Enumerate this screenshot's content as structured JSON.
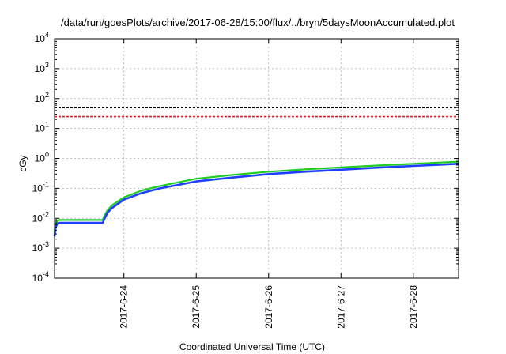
{
  "chart_data": {
    "type": "line",
    "title": "/data/run/goesPlots/archive/2017-06-28/15:00/flux/../bryn/5daysMoonAccumulated.plot",
    "xlabel": "Coordinated Universal Time (UTC)",
    "ylabel": "cGy",
    "y_scale": "log",
    "xlim": [
      "2017-06-23 01:00",
      "2017-06-28 15:00"
    ],
    "ylim": [
      0.0001,
      10000
    ],
    "x_ticks": [
      "2017-6-24",
      "2017-6-25",
      "2017-6-26",
      "2017-6-27",
      "2017-6-28"
    ],
    "y_ticks": [
      {
        "value": 0.0001,
        "base": "10",
        "exp": "-4"
      },
      {
        "value": 0.001,
        "base": "10",
        "exp": "-3"
      },
      {
        "value": 0.01,
        "base": "10",
        "exp": "-2"
      },
      {
        "value": 0.1,
        "base": "10",
        "exp": "-1"
      },
      {
        "value": 1,
        "base": "10",
        "exp": "0"
      },
      {
        "value": 10,
        "base": "10",
        "exp": "1"
      },
      {
        "value": 100,
        "base": "10",
        "exp": "2"
      },
      {
        "value": 1000,
        "base": "10",
        "exp": "3"
      },
      {
        "value": 10000,
        "base": "10",
        "exp": "4"
      }
    ],
    "grid": true,
    "legend": "none",
    "reference_lines": [
      {
        "y": 50,
        "color": "#000000",
        "style": "dashed"
      },
      {
        "y": 25,
        "color": "#e41a1c",
        "style": "dashed"
      }
    ],
    "series": [
      {
        "color": "#22cc22",
        "x": [
          "2017-06-23 01:00",
          "2017-06-23 01:20",
          "2017-06-23 02:00",
          "2017-06-23 02:30",
          "2017-06-23 06:00",
          "2017-06-23 12:00",
          "2017-06-23 16:00",
          "2017-06-23 17:00",
          "2017-06-23 17:30",
          "2017-06-23 18:30",
          "2017-06-23 20:00",
          "2017-06-24 00:00",
          "2017-06-24 06:00",
          "2017-06-24 12:00",
          "2017-06-25 00:00",
          "2017-06-25 12:00",
          "2017-06-26 00:00",
          "2017-06-26 12:00",
          "2017-06-27 00:00",
          "2017-06-27 12:00",
          "2017-06-28 00:00",
          "2017-06-28 15:00"
        ],
        "y": [
          0.0035,
          0.0065,
          0.0085,
          0.0088,
          0.0088,
          0.0088,
          0.0088,
          0.0088,
          0.012,
          0.018,
          0.027,
          0.05,
          0.085,
          0.12,
          0.21,
          0.28,
          0.36,
          0.43,
          0.5,
          0.58,
          0.66,
          0.78
        ]
      },
      {
        "color": "#1f3fff",
        "x": [
          "2017-06-23 01:00",
          "2017-06-23 01:20",
          "2017-06-23 02:00",
          "2017-06-23 02:30",
          "2017-06-23 06:00",
          "2017-06-23 12:00",
          "2017-06-23 16:00",
          "2017-06-23 17:00",
          "2017-06-23 17:30",
          "2017-06-23 18:30",
          "2017-06-23 20:00",
          "2017-06-24 00:00",
          "2017-06-24 06:00",
          "2017-06-24 12:00",
          "2017-06-25 00:00",
          "2017-06-25 12:00",
          "2017-06-26 00:00",
          "2017-06-26 12:00",
          "2017-06-27 00:00",
          "2017-06-27 12:00",
          "2017-06-28 00:00",
          "2017-06-28 15:00"
        ],
        "y": [
          0.0025,
          0.005,
          0.0068,
          0.007,
          0.007,
          0.007,
          0.007,
          0.007,
          0.0095,
          0.015,
          0.022,
          0.042,
          0.07,
          0.1,
          0.17,
          0.23,
          0.3,
          0.36,
          0.42,
          0.49,
          0.56,
          0.66
        ]
      }
    ]
  }
}
